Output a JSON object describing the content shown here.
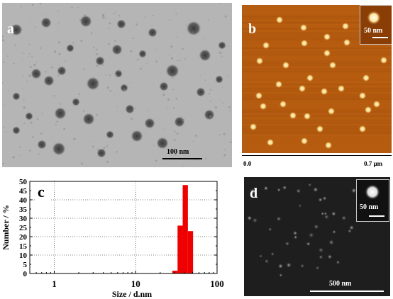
{
  "panel_a": {
    "label": "a",
    "scale": "100 nm"
  },
  "panel_b": {
    "label": "b",
    "inset_scale": "50 nm",
    "axis_start": "0.0",
    "axis_end": "0.7 μm"
  },
  "panel_c": {
    "label": "c"
  },
  "panel_d": {
    "label": "d",
    "inset_scale": "50 nm",
    "scale": "500 nm"
  },
  "colors": {
    "bar_red": "#ee0000",
    "afm_bg": "#b45b0f",
    "tem_bg": "#b5b5b5",
    "sem_bg": "#1e1e1e"
  },
  "chart_data": {
    "type": "bar",
    "xlabel": "Size / d.nm",
    "ylabel": "Number / %",
    "x_scale": "log",
    "xlim": [
      0.5,
      100
    ],
    "ylim": [
      0,
      50
    ],
    "x_ticks": [
      1,
      10,
      100
    ],
    "y_ticks": [
      0,
      5,
      10,
      15,
      20,
      25,
      30,
      35,
      40,
      45,
      50
    ],
    "grid": true,
    "bins": [
      {
        "x0": 28.2,
        "x1": 32.7,
        "value": 1.5
      },
      {
        "x0": 32.7,
        "x1": 37.8,
        "value": 26
      },
      {
        "x0": 37.8,
        "x1": 43.8,
        "value": 48
      },
      {
        "x0": 43.8,
        "x1": 50.7,
        "value": 23
      }
    ]
  }
}
